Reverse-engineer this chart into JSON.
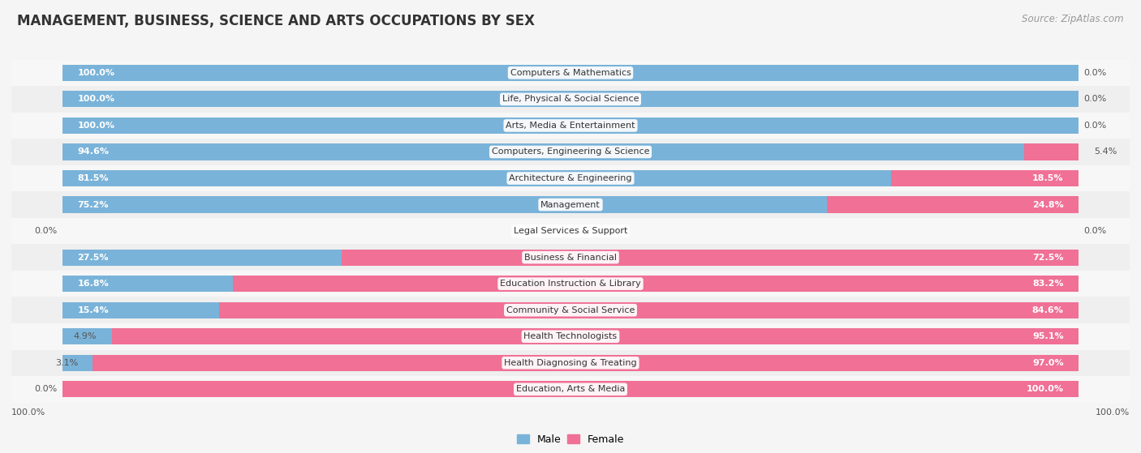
{
  "title": "MANAGEMENT, BUSINESS, SCIENCE AND ARTS OCCUPATIONS BY SEX",
  "source": "Source: ZipAtlas.com",
  "categories": [
    "Computers & Mathematics",
    "Life, Physical & Social Science",
    "Arts, Media & Entertainment",
    "Computers, Engineering & Science",
    "Architecture & Engineering",
    "Management",
    "Legal Services & Support",
    "Business & Financial",
    "Education Instruction & Library",
    "Community & Social Service",
    "Health Technologists",
    "Health Diagnosing & Treating",
    "Education, Arts & Media"
  ],
  "male": [
    100.0,
    100.0,
    100.0,
    94.6,
    81.5,
    75.2,
    0.0,
    27.5,
    16.8,
    15.4,
    4.9,
    3.1,
    0.0
  ],
  "female": [
    0.0,
    0.0,
    0.0,
    5.4,
    18.5,
    24.8,
    0.0,
    72.5,
    83.2,
    84.6,
    95.1,
    97.0,
    100.0
  ],
  "male_color": "#7ab3d9",
  "female_color": "#f07096",
  "row_colors": [
    "#f7f7f7",
    "#efefef"
  ],
  "title_color": "#333333",
  "source_color": "#999999",
  "label_outside_color": "#555555",
  "label_inside_color": "#ffffff",
  "cat_label_color": "#333333",
  "title_fontsize": 12,
  "bar_label_fontsize": 8,
  "cat_label_fontsize": 8,
  "source_fontsize": 8.5,
  "legend_fontsize": 9,
  "xlim_left": -5,
  "xlim_right": 105,
  "bar_height": 0.62
}
